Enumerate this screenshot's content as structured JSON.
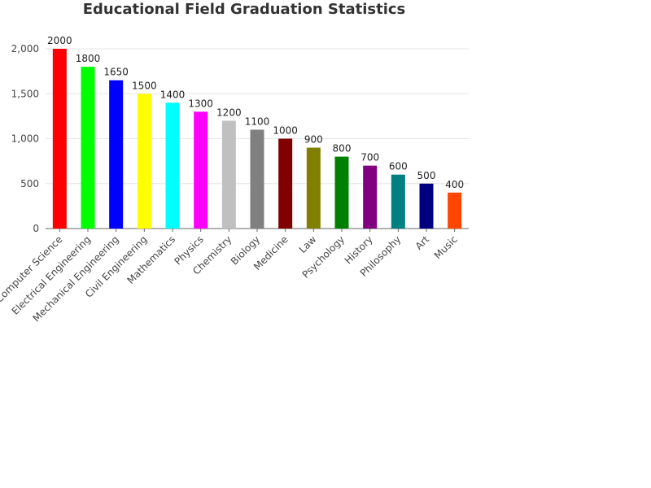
{
  "chart_data": {
    "type": "bar",
    "title": "Educational Field Graduation Statistics",
    "xlabel": "",
    "ylabel": "",
    "categories": [
      "Computer Science",
      "Electrical Engineering",
      "Mechanical Engineering",
      "Civil Engineering",
      "Mathematics",
      "Physics",
      "Chemistry",
      "Biology",
      "Medicine",
      "Law",
      "Psychology",
      "History",
      "Philosophy",
      "Art",
      "Music"
    ],
    "values": [
      2000,
      1800,
      1650,
      1500,
      1400,
      1300,
      1200,
      1100,
      1000,
      900,
      800,
      700,
      600,
      500,
      400
    ],
    "data_labels": [
      "2000",
      "1800",
      "1650",
      "1500",
      "1400",
      "1300",
      "1200",
      "1100",
      "1000",
      "900",
      "800",
      "700",
      "600",
      "500",
      "400"
    ],
    "colors": [
      "#ff0000",
      "#00ff00",
      "#0000ff",
      "#ffff00",
      "#00ffff",
      "#ff00ff",
      "#c0c0c0",
      "#808080",
      "#800000",
      "#808000",
      "#008000",
      "#800080",
      "#008080",
      "#000080",
      "#ff4500"
    ],
    "y_ticks": [
      0,
      500,
      1000,
      1500,
      2000
    ],
    "y_tick_labels": [
      "0",
      "500",
      "1,000",
      "1,500",
      "2,000"
    ],
    "ylim": [
      0,
      2000
    ],
    "grid": true,
    "legend": "none"
  }
}
